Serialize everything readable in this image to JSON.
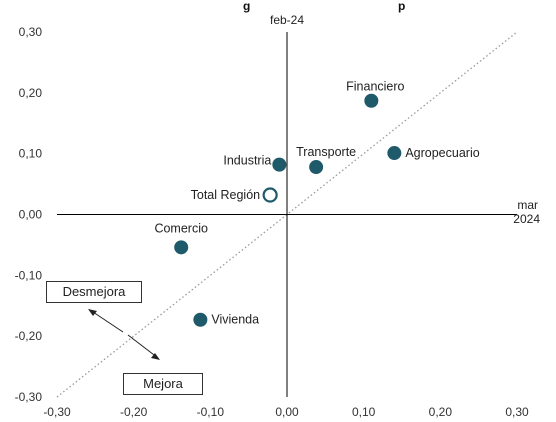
{
  "colors": {
    "point": "#1f5a6b",
    "total_text": "#2a6a7e",
    "axis": "#000000",
    "diagonal": "#9a9a9a"
  },
  "chart_data": {
    "type": "scatter",
    "title_fragment": "g",
    "title_fragment_2": "p",
    "xlabel": "mar 2024",
    "ylabel": "feb-24",
    "xlim": [
      -0.3,
      0.3
    ],
    "ylim": [
      -0.3,
      0.3
    ],
    "xticks": [
      "-0,30",
      "-0,20",
      "-0,10",
      "0,00",
      "0,10",
      "0,20",
      "0,30"
    ],
    "yticks": [
      "0,30",
      "0,20",
      "0,10",
      "0,00",
      "-0,10",
      "-0,20",
      "-0,30"
    ],
    "grid": false,
    "diagonal_reference_line": true,
    "points": [
      {
        "label": "Financiero",
        "x": 0.11,
        "y": 0.187,
        "filled": true
      },
      {
        "label": "Agropecuario",
        "x": 0.14,
        "y": 0.101,
        "filled": true
      },
      {
        "label": "Transporte",
        "x": 0.038,
        "y": 0.078,
        "filled": true
      },
      {
        "label": "Industria",
        "x": -0.01,
        "y": 0.082,
        "filled": true
      },
      {
        "label": "Total Región",
        "x": -0.022,
        "y": 0.032,
        "filled": false
      },
      {
        "label": "Comercio",
        "x": -0.138,
        "y": -0.054,
        "filled": true
      },
      {
        "label": "Vivienda",
        "x": -0.113,
        "y": -0.173,
        "filled": true
      }
    ],
    "annotations": {
      "worse": "Desmejora",
      "better": "Mejora"
    }
  }
}
